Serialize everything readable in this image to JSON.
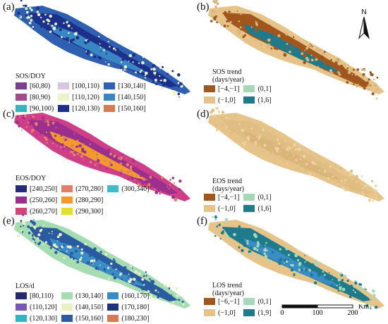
{
  "panels": [
    {
      "label": "(a)",
      "legend_title": "SOS/DOY",
      "legend_type": "class",
      "items": [
        {
          "text": "[60,80)",
          "color": "#7a3f8f"
        },
        {
          "text": "[80,90)",
          "color": "#a34a8c"
        },
        {
          "text": "[90,100)",
          "color": "#2fb6c0"
        },
        {
          "text": "[100,110)",
          "color": "#d8c6e6"
        },
        {
          "text": "[110,120)",
          "color": "#e8f4c8"
        },
        {
          "text": "[120,130)",
          "color": "#1c2f8a"
        },
        {
          "text": "[130,140]",
          "color": "#2f5fb0"
        },
        {
          "text": "[140,150]",
          "color": "#3a86c4"
        },
        {
          "text": "[150,160]",
          "color": "#d67a52"
        }
      ]
    },
    {
      "label": "(b)",
      "legend_title": "SOS trend\n(days/year)",
      "legend_type": "trend",
      "items": [
        {
          "text": "[−4,−1]",
          "color": "#a0561c"
        },
        {
          "text": "(−1,0]",
          "color": "#e6c489"
        },
        {
          "text": "(0,1]",
          "color": "#a6d8b8"
        },
        {
          "text": "(1,6]",
          "color": "#1f7a8c"
        }
      ]
    },
    {
      "label": "(c)",
      "legend_title": "EOS/DOY",
      "legend_type": "class",
      "items": [
        {
          "text": "[240,250]",
          "color": "#252a7a"
        },
        {
          "text": "(250,260]",
          "color": "#9a2f8e"
        },
        {
          "text": "(260,270]",
          "color": "#d8427a"
        },
        {
          "text": "(270,280]",
          "color": "#e37e6b"
        },
        {
          "text": "(280,290]",
          "color": "#f29a2c"
        },
        {
          "text": "(290,300]",
          "color": "#e2e02a"
        },
        {
          "text": "(300,340]",
          "color": "#3fbcc8"
        }
      ]
    },
    {
      "label": "(d)",
      "legend_title": "EOS trend\n(days/year)",
      "legend_type": "trend",
      "items": [
        {
          "text": "[−4,−1]",
          "color": "#a0561c"
        },
        {
          "text": "(−1,0]",
          "color": "#e6c489"
        },
        {
          "text": "(0,1]",
          "color": "#a6d8b8"
        },
        {
          "text": "(1,6]",
          "color": "#1f7a8c"
        }
      ]
    },
    {
      "label": "(e)",
      "legend_title": "LOS/d",
      "legend_type": "class",
      "items": [
        {
          "text": "[80,110)",
          "color": "#252a6e"
        },
        {
          "text": "(110,120]",
          "color": "#7b57b5"
        },
        {
          "text": "(120,130]",
          "color": "#2fb6c0"
        },
        {
          "text": "(130,140]",
          "color": "#a6dcb2"
        },
        {
          "text": "(140,150]",
          "color": "#eaf1c4"
        },
        {
          "text": "(150,160]",
          "color": "#2a5aa0"
        },
        {
          "text": "(160,170]",
          "color": "#3a8cc6"
        },
        {
          "text": "(170,180]",
          "color": "#20307e"
        },
        {
          "text": "(180,230]",
          "color": "#d67a52"
        }
      ]
    },
    {
      "label": "(f)",
      "legend_title": "LOS trend\n(days/year)",
      "legend_type": "trend",
      "items": [
        {
          "text": "[−6,−1]",
          "color": "#a0561c"
        },
        {
          "text": "(−1,0]",
          "color": "#e6c489"
        },
        {
          "text": "(0,1]",
          "color": "#a6d8b8"
        },
        {
          "text": "(1,9]",
          "color": "#1f7a8c"
        }
      ]
    }
  ],
  "map_colors": {
    "a": {
      "base": "#2f5fb0",
      "dark": "#1c2f8a",
      "light": "#e8f4c8",
      "accent": "#3a86c4"
    },
    "b": {
      "base": "#e6c489",
      "dark": "#a0561c",
      "light": "#d9b57a",
      "accent": "#1f7a8c"
    },
    "c": {
      "base": "#cf3f88",
      "dark": "#9a2f8e",
      "light": "#e37e6b",
      "accent": "#f29a2c"
    },
    "d": {
      "base": "#e6c489",
      "dark": "#e0bd82",
      "light": "#edd3a2",
      "accent": "#d9b57a"
    },
    "e": {
      "base": "#a6dcb2",
      "dark": "#2a5aa0",
      "light": "#eaf1c4",
      "accent": "#3a8cc6"
    },
    "f": {
      "base": "#e6c489",
      "dark": "#1f7a8c",
      "light": "#a6d8b8",
      "accent": "#3a8cc6"
    }
  },
  "north_arrow": {
    "label": "N"
  },
  "scale_bar": {
    "tick_labels": [
      "0",
      "100",
      "200"
    ],
    "unit": "Km"
  }
}
